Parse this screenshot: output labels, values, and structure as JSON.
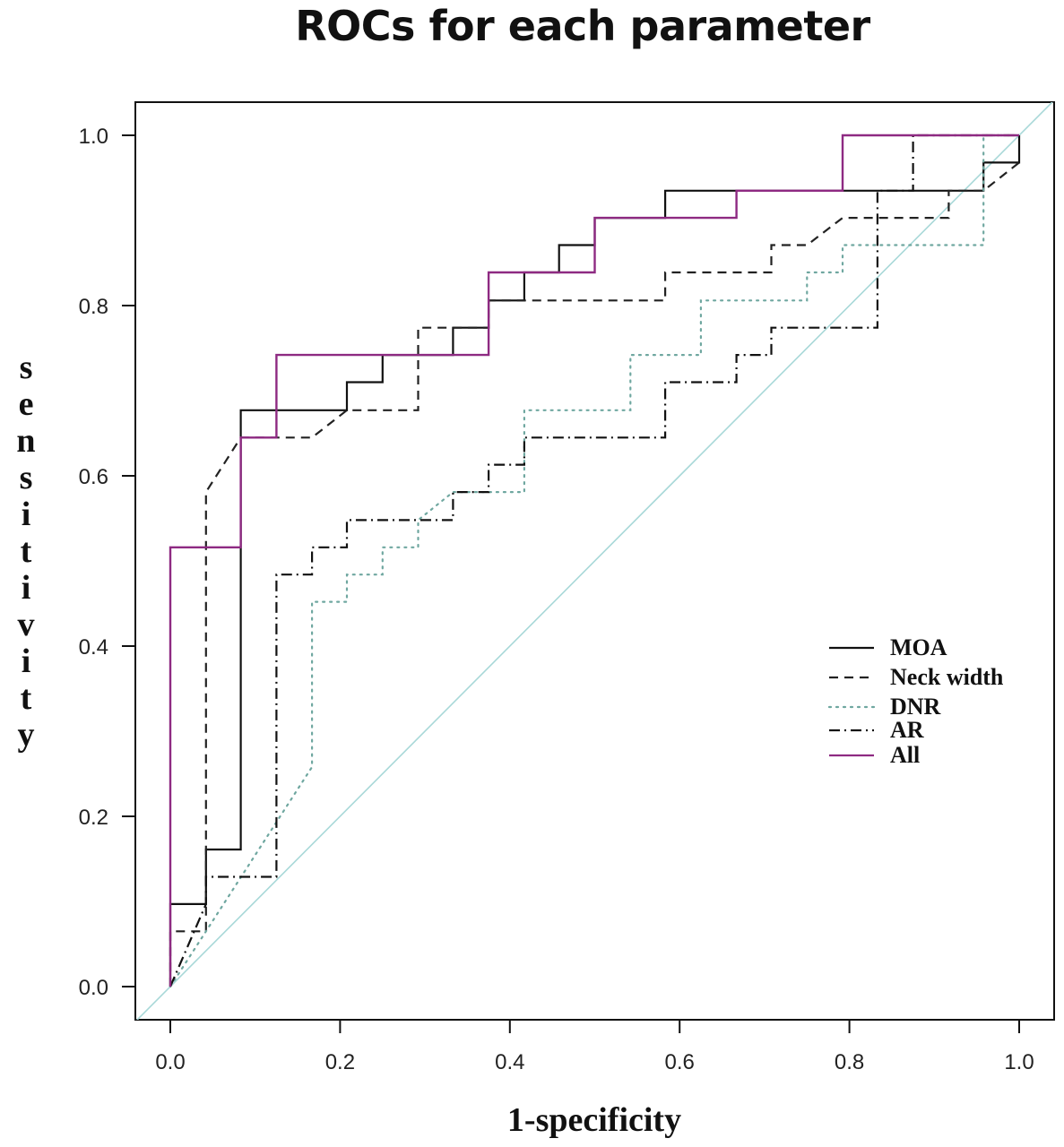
{
  "chart_data": {
    "type": "line",
    "title": "ROCs for each parameter",
    "xlabel": "1-specificity",
    "ylabel": "sensitivity",
    "xlim": [
      -0.08,
      1.08
    ],
    "ylim": [
      -0.08,
      1.08
    ],
    "x_ticks": [
      "0.0",
      "0.2",
      "0.4",
      "0.6",
      "0.8",
      "1.0"
    ],
    "y_ticks": [
      "0.0",
      "0.2",
      "0.4",
      "0.6",
      "0.8",
      "1.0"
    ],
    "grid": false,
    "legend_position": "right",
    "reference_line": {
      "color": "#a8d8d8",
      "from": [
        -0.08,
        -0.08
      ],
      "to": [
        1.08,
        1.08
      ]
    },
    "series": [
      {
        "name": "MOA",
        "style": "solid",
        "color": "#111111",
        "points": [
          [
            0,
            0
          ],
          [
            0,
            0.097
          ],
          [
            0.042,
            0.097
          ],
          [
            0.042,
            0.161
          ],
          [
            0.083,
            0.161
          ],
          [
            0.083,
            0.677
          ],
          [
            0.208,
            0.677
          ],
          [
            0.208,
            0.71
          ],
          [
            0.25,
            0.71
          ],
          [
            0.25,
            0.742
          ],
          [
            0.333,
            0.742
          ],
          [
            0.333,
            0.774
          ],
          [
            0.375,
            0.774
          ],
          [
            0.375,
            0.806
          ],
          [
            0.417,
            0.806
          ],
          [
            0.417,
            0.839
          ],
          [
            0.458,
            0.839
          ],
          [
            0.458,
            0.871
          ],
          [
            0.5,
            0.871
          ],
          [
            0.5,
            0.903
          ],
          [
            0.583,
            0.903
          ],
          [
            0.583,
            0.935
          ],
          [
            0.958,
            0.935
          ],
          [
            0.958,
            0.968
          ],
          [
            1,
            0.968
          ],
          [
            1,
            1
          ]
        ]
      },
      {
        "name": "Neck width",
        "style": "dashed",
        "color": "#222222",
        "points": [
          [
            0,
            0
          ],
          [
            0,
            0.065
          ],
          [
            0.042,
            0.065
          ],
          [
            0.042,
            0.581
          ],
          [
            0.083,
            0.645
          ],
          [
            0.167,
            0.645
          ],
          [
            0.208,
            0.677
          ],
          [
            0.292,
            0.677
          ],
          [
            0.292,
            0.774
          ],
          [
            0.375,
            0.774
          ],
          [
            0.375,
            0.806
          ],
          [
            0.583,
            0.806
          ],
          [
            0.583,
            0.839
          ],
          [
            0.708,
            0.839
          ],
          [
            0.708,
            0.871
          ],
          [
            0.75,
            0.871
          ],
          [
            0.792,
            0.903
          ],
          [
            0.917,
            0.903
          ],
          [
            0.917,
            0.935
          ],
          [
            0.958,
            0.935
          ],
          [
            1,
            0.968
          ]
        ]
      },
      {
        "name": "DNR",
        "style": "dotted",
        "color": "#6fa7a0",
        "points": [
          [
            0,
            0
          ],
          [
            0.167,
            0.258
          ],
          [
            0.167,
            0.452
          ],
          [
            0.208,
            0.452
          ],
          [
            0.208,
            0.484
          ],
          [
            0.25,
            0.484
          ],
          [
            0.25,
            0.516
          ],
          [
            0.292,
            0.516
          ],
          [
            0.292,
            0.548
          ],
          [
            0.333,
            0.581
          ],
          [
            0.417,
            0.581
          ],
          [
            0.417,
            0.677
          ],
          [
            0.542,
            0.677
          ],
          [
            0.542,
            0.742
          ],
          [
            0.625,
            0.742
          ],
          [
            0.625,
            0.806
          ],
          [
            0.75,
            0.806
          ],
          [
            0.75,
            0.839
          ],
          [
            0.792,
            0.839
          ],
          [
            0.792,
            0.871
          ],
          [
            0.958,
            0.871
          ],
          [
            0.958,
            1
          ],
          [
            1,
            1
          ]
        ]
      },
      {
        "name": "AR",
        "style": "dashdot",
        "color": "#111111",
        "points": [
          [
            0,
            0
          ],
          [
            0.042,
            0.097
          ],
          [
            0.042,
            0.129
          ],
          [
            0.125,
            0.129
          ],
          [
            0.125,
            0.484
          ],
          [
            0.167,
            0.484
          ],
          [
            0.167,
            0.516
          ],
          [
            0.208,
            0.516
          ],
          [
            0.208,
            0.548
          ],
          [
            0.292,
            0.548
          ],
          [
            0.333,
            0.548
          ],
          [
            0.333,
            0.581
          ],
          [
            0.375,
            0.581
          ],
          [
            0.375,
            0.613
          ],
          [
            0.417,
            0.613
          ],
          [
            0.417,
            0.645
          ],
          [
            0.583,
            0.645
          ],
          [
            0.583,
            0.71
          ],
          [
            0.667,
            0.71
          ],
          [
            0.667,
            0.742
          ],
          [
            0.708,
            0.742
          ],
          [
            0.708,
            0.774
          ],
          [
            0.833,
            0.774
          ],
          [
            0.833,
            0.935
          ],
          [
            0.875,
            0.935
          ],
          [
            0.875,
            1
          ],
          [
            1,
            1
          ]
        ]
      },
      {
        "name": "All",
        "style": "solid",
        "color": "#8e2a82",
        "points": [
          [
            0,
            0
          ],
          [
            0,
            0.516
          ],
          [
            0.083,
            0.516
          ],
          [
            0.083,
            0.645
          ],
          [
            0.125,
            0.645
          ],
          [
            0.125,
            0.742
          ],
          [
            0.375,
            0.742
          ],
          [
            0.375,
            0.839
          ],
          [
            0.5,
            0.839
          ],
          [
            0.5,
            0.903
          ],
          [
            0.667,
            0.903
          ],
          [
            0.667,
            0.935
          ],
          [
            0.792,
            0.935
          ],
          [
            0.792,
            1
          ],
          [
            1,
            1
          ]
        ]
      }
    ]
  }
}
